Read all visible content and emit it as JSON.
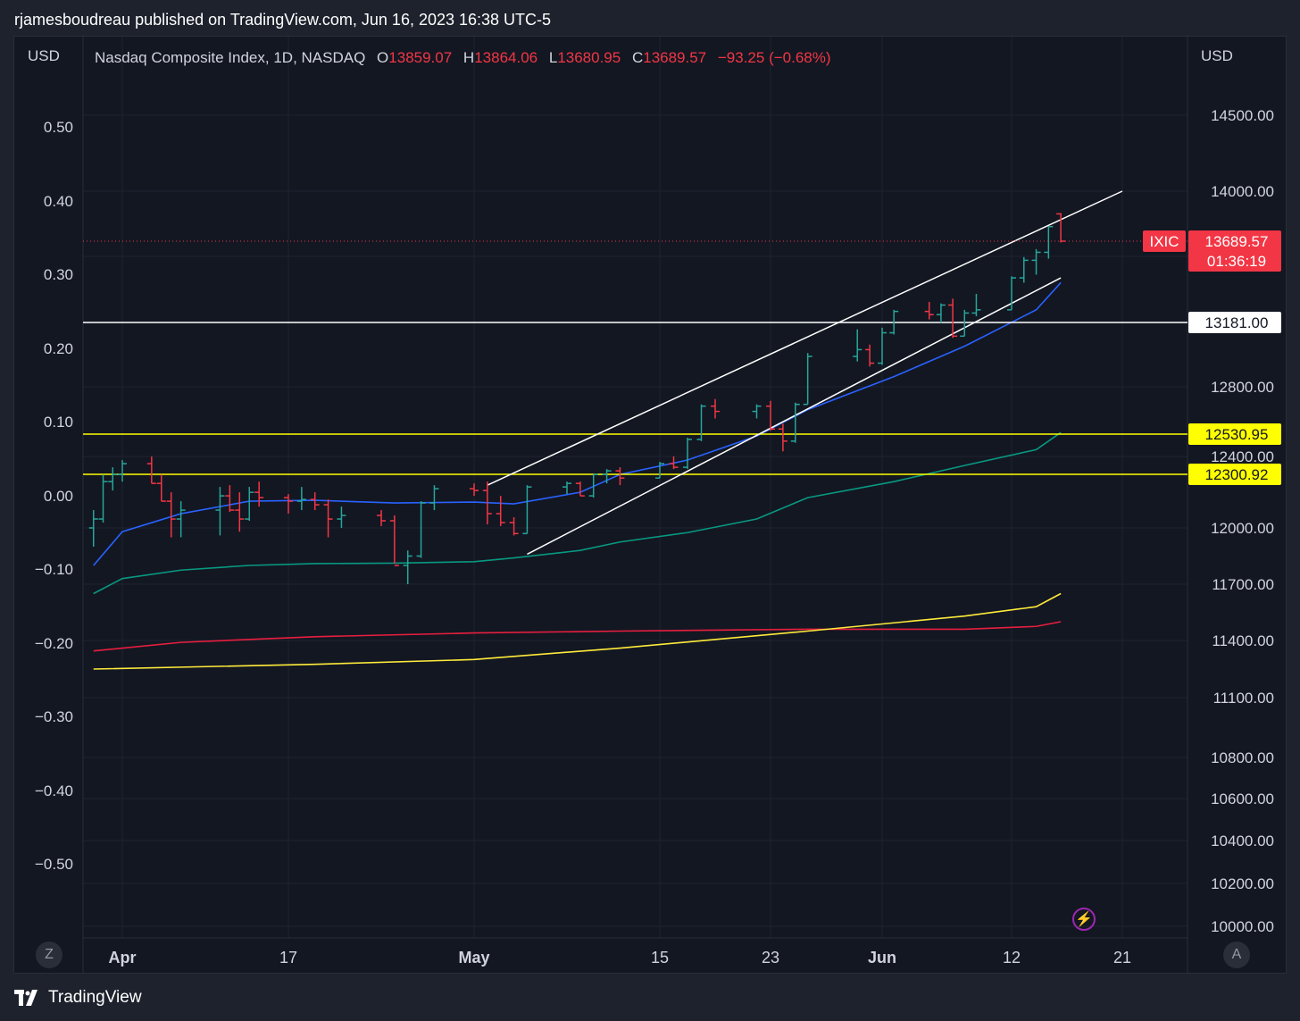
{
  "header": {
    "published_text": "rjamesboudreau published on TradingView.com, Jun 16, 2023 16:38 UTC-5"
  },
  "legend": {
    "symbol": "Nasdaq Composite Index, 1D, NASDAQ",
    "o_label": "O",
    "o_value": "13859.07",
    "h_label": "H",
    "h_value": "13864.06",
    "l_label": "L",
    "l_value": "13680.95",
    "c_label": "C",
    "c_value": "13689.57",
    "change": "−93.25 (−0.68%)"
  },
  "axes": {
    "left_unit": "USD",
    "right_unit": "USD"
  },
  "price_tags": {
    "symbol_tag": "IXIC",
    "last_price": "13689.57",
    "countdown": "01:36:19"
  },
  "footer": {
    "brand": "TradingView",
    "left_button": "Z",
    "right_button": "A"
  },
  "colors": {
    "up": "#26a69a",
    "down": "#f23645",
    "ema_fast": "#2962ff",
    "ema_mid": "#089981",
    "sma_red": "#e91e3f",
    "sma_yellow": "#ffeb3b",
    "hline_yellow": "#ffff00",
    "hline_white": "#ffffff"
  },
  "chart_data": {
    "type": "ohlc",
    "title": "Nasdaq Composite Index, 1D, NASDAQ",
    "y_left_ticks": [
      "0.50",
      "0.40",
      "0.30",
      "0.20",
      "0.10",
      "0.00",
      "−0.10",
      "−0.20",
      "−0.30",
      "−0.40",
      "−0.50"
    ],
    "y_right_ticks": [
      "14500.00",
      "14000.00",
      "12800.00",
      "12400.00",
      "12000.00",
      "11700.00",
      "11400.00",
      "11100.00",
      "10800.00",
      "10600.00",
      "10400.00",
      "10200.00",
      "10000.00"
    ],
    "x_ticks": [
      "Apr",
      "17",
      "May",
      "15",
      "23",
      "Jun",
      "12",
      "21"
    ],
    "x_ticks_bold": [
      "Apr",
      "May",
      "Jun"
    ],
    "horizontal_levels": [
      {
        "label": "13181.00",
        "style": "white"
      },
      {
        "label": "12530.95",
        "style": "yellow"
      },
      {
        "label": "12300.92",
        "style": "yellow"
      }
    ],
    "bars": [
      {
        "date": "2023-03-28",
        "o": 12000,
        "h": 12100,
        "l": 11900,
        "c": 12050
      },
      {
        "date": "2023-03-29",
        "o": 12050,
        "h": 12300,
        "l": 12030,
        "c": 12260
      },
      {
        "date": "2023-03-30",
        "o": 12260,
        "h": 12340,
        "l": 12210,
        "c": 12300
      },
      {
        "date": "2023-03-31",
        "o": 12300,
        "h": 12380,
        "l": 12260,
        "c": 12360
      },
      {
        "date": "2023-04-03",
        "o": 12360,
        "h": 12400,
        "l": 12250,
        "c": 12250
      },
      {
        "date": "2023-04-04",
        "o": 12250,
        "h": 12300,
        "l": 12150,
        "c": 12150
      },
      {
        "date": "2023-04-05",
        "o": 12150,
        "h": 12200,
        "l": 11950,
        "c": 12050
      },
      {
        "date": "2023-04-06",
        "o": 12050,
        "h": 12150,
        "l": 11950,
        "c": 12100
      },
      {
        "date": "2023-04-10",
        "o": 12100,
        "h": 12230,
        "l": 11960,
        "c": 12180
      },
      {
        "date": "2023-04-11",
        "o": 12180,
        "h": 12240,
        "l": 12090,
        "c": 12100
      },
      {
        "date": "2023-04-12",
        "o": 12100,
        "h": 12200,
        "l": 11980,
        "c": 12050
      },
      {
        "date": "2023-04-13",
        "o": 12050,
        "h": 12230,
        "l": 12040,
        "c": 12200
      },
      {
        "date": "2023-04-14",
        "o": 12200,
        "h": 12260,
        "l": 12120,
        "c": 12170
      },
      {
        "date": "2023-04-17",
        "o": 12170,
        "h": 12190,
        "l": 12080,
        "c": 12150
      },
      {
        "date": "2023-04-18",
        "o": 12150,
        "h": 12230,
        "l": 12100,
        "c": 12160
      },
      {
        "date": "2023-04-19",
        "o": 12160,
        "h": 12200,
        "l": 12100,
        "c": 12130
      },
      {
        "date": "2023-04-20",
        "o": 12130,
        "h": 12160,
        "l": 11950,
        "c": 12050
      },
      {
        "date": "2023-04-21",
        "o": 12050,
        "h": 12120,
        "l": 12000,
        "c": 12070
      },
      {
        "date": "2023-04-24",
        "o": 12070,
        "h": 12100,
        "l": 12010,
        "c": 12040
      },
      {
        "date": "2023-04-25",
        "o": 12040,
        "h": 12070,
        "l": 11810,
        "c": 11800
      },
      {
        "date": "2023-04-26",
        "o": 11800,
        "h": 11880,
        "l": 11700,
        "c": 11850
      },
      {
        "date": "2023-04-27",
        "o": 11850,
        "h": 12150,
        "l": 11840,
        "c": 12140
      },
      {
        "date": "2023-04-28",
        "o": 12140,
        "h": 12240,
        "l": 12100,
        "c": 12220
      },
      {
        "date": "2023-05-01",
        "o": 12220,
        "h": 12250,
        "l": 12180,
        "c": 12210
      },
      {
        "date": "2023-05-02",
        "o": 12210,
        "h": 12260,
        "l": 12020,
        "c": 12080
      },
      {
        "date": "2023-05-03",
        "o": 12080,
        "h": 12180,
        "l": 12010,
        "c": 12030
      },
      {
        "date": "2023-05-04",
        "o": 12030,
        "h": 12060,
        "l": 11960,
        "c": 11970
      },
      {
        "date": "2023-05-05",
        "o": 11970,
        "h": 12240,
        "l": 11970,
        "c": 12230
      },
      {
        "date": "2023-05-08",
        "o": 12230,
        "h": 12260,
        "l": 12190,
        "c": 12250
      },
      {
        "date": "2023-05-09",
        "o": 12250,
        "h": 12260,
        "l": 12180,
        "c": 12180
      },
      {
        "date": "2023-05-10",
        "o": 12180,
        "h": 12300,
        "l": 12170,
        "c": 12300
      },
      {
        "date": "2023-05-11",
        "o": 12300,
        "h": 12330,
        "l": 12250,
        "c": 12320
      },
      {
        "date": "2023-05-12",
        "o": 12320,
        "h": 12340,
        "l": 12240,
        "c": 12280
      },
      {
        "date": "2023-05-15",
        "o": 12280,
        "h": 12370,
        "l": 12280,
        "c": 12360
      },
      {
        "date": "2023-05-16",
        "o": 12360,
        "h": 12400,
        "l": 12330,
        "c": 12340
      },
      {
        "date": "2023-05-17",
        "o": 12340,
        "h": 12510,
        "l": 12330,
        "c": 12500
      },
      {
        "date": "2023-05-18",
        "o": 12500,
        "h": 12700,
        "l": 12490,
        "c": 12690
      },
      {
        "date": "2023-05-19",
        "o": 12690,
        "h": 12730,
        "l": 12620,
        "c": 12660
      },
      {
        "date": "2023-05-22",
        "o": 12660,
        "h": 12700,
        "l": 12620,
        "c": 12690
      },
      {
        "date": "2023-05-23",
        "o": 12690,
        "h": 12720,
        "l": 12550,
        "c": 12560
      },
      {
        "date": "2023-05-24",
        "o": 12560,
        "h": 12590,
        "l": 12430,
        "c": 12490
      },
      {
        "date": "2023-05-25",
        "o": 12490,
        "h": 12710,
        "l": 12480,
        "c": 12700
      },
      {
        "date": "2023-05-26",
        "o": 12700,
        "h": 13000,
        "l": 12700,
        "c": 12980
      },
      {
        "date": "2023-05-30",
        "o": 12980,
        "h": 13140,
        "l": 12950,
        "c": 13020
      },
      {
        "date": "2023-05-31",
        "o": 13020,
        "h": 13050,
        "l": 12920,
        "c": 12940
      },
      {
        "date": "2023-06-01",
        "o": 12940,
        "h": 13150,
        "l": 12930,
        "c": 13120
      },
      {
        "date": "2023-06-02",
        "o": 13120,
        "h": 13260,
        "l": 13110,
        "c": 13250
      },
      {
        "date": "2023-06-05",
        "o": 13250,
        "h": 13310,
        "l": 13200,
        "c": 13230
      },
      {
        "date": "2023-06-06",
        "o": 13230,
        "h": 13300,
        "l": 13180,
        "c": 13290
      },
      {
        "date": "2023-06-07",
        "o": 13290,
        "h": 13330,
        "l": 13090,
        "c": 13100
      },
      {
        "date": "2023-06-08",
        "o": 13100,
        "h": 13260,
        "l": 13100,
        "c": 13240
      },
      {
        "date": "2023-06-09",
        "o": 13240,
        "h": 13360,
        "l": 13220,
        "c": 13260
      },
      {
        "date": "2023-06-12",
        "o": 13260,
        "h": 13470,
        "l": 13260,
        "c": 13460
      },
      {
        "date": "2023-06-13",
        "o": 13460,
        "h": 13590,
        "l": 13430,
        "c": 13570
      },
      {
        "date": "2023-06-14",
        "o": 13570,
        "h": 13640,
        "l": 13480,
        "c": 13620
      },
      {
        "date": "2023-06-15",
        "o": 13620,
        "h": 13780,
        "l": 13580,
        "c": 13780
      },
      {
        "date": "2023-06-16",
        "o": 13859.07,
        "h": 13864.06,
        "l": 13680.95,
        "c": 13689.57
      }
    ],
    "moving_averages": [
      {
        "color": "blue",
        "points": [
          [
            0,
            11800
          ],
          [
            3,
            11980
          ],
          [
            7,
            12080
          ],
          [
            11,
            12150
          ],
          [
            15,
            12155
          ],
          [
            19,
            12140
          ],
          [
            23,
            12145
          ],
          [
            26,
            12135
          ],
          [
            29,
            12200
          ],
          [
            32,
            12300
          ],
          [
            35,
            12380
          ],
          [
            38,
            12520
          ],
          [
            42,
            12670
          ],
          [
            46,
            12860
          ],
          [
            50,
            13040
          ],
          [
            54,
            13260
          ],
          [
            57,
            13430
          ]
        ]
      },
      {
        "color": "green",
        "points": [
          [
            0,
            11650
          ],
          [
            3,
            11730
          ],
          [
            7,
            11775
          ],
          [
            11,
            11800
          ],
          [
            15,
            11810
          ],
          [
            19,
            11812
          ],
          [
            23,
            11820
          ],
          [
            26,
            11840
          ],
          [
            29,
            11880
          ],
          [
            32,
            11925
          ],
          [
            35,
            11975
          ],
          [
            38,
            12050
          ],
          [
            42,
            12170
          ],
          [
            46,
            12260
          ],
          [
            50,
            12350
          ],
          [
            54,
            12440
          ],
          [
            57,
            12540
          ]
        ]
      },
      {
        "color": "red",
        "points": [
          [
            0,
            11345
          ],
          [
            7,
            11390
          ],
          [
            15,
            11420
          ],
          [
            23,
            11440
          ],
          [
            32,
            11450
          ],
          [
            42,
            11460
          ],
          [
            50,
            11460
          ],
          [
            54,
            11475
          ],
          [
            57,
            11500
          ]
        ]
      },
      {
        "color": "yellow",
        "points": [
          [
            0,
            11250
          ],
          [
            7,
            11260
          ],
          [
            15,
            11275
          ],
          [
            23,
            11300
          ],
          [
            32,
            11360
          ],
          [
            42,
            11450
          ],
          [
            50,
            11530
          ],
          [
            54,
            11580
          ],
          [
            57,
            11650
          ]
        ]
      }
    ],
    "channel_lines": [
      {
        "name": "upper",
        "from": [
          "2023-05-02",
          12240
        ],
        "to": [
          "2023-06-21",
          14000
        ]
      },
      {
        "name": "lower",
        "from": [
          "2023-05-05",
          11860
        ],
        "to": [
          "2023-06-16",
          13460
        ]
      }
    ]
  }
}
